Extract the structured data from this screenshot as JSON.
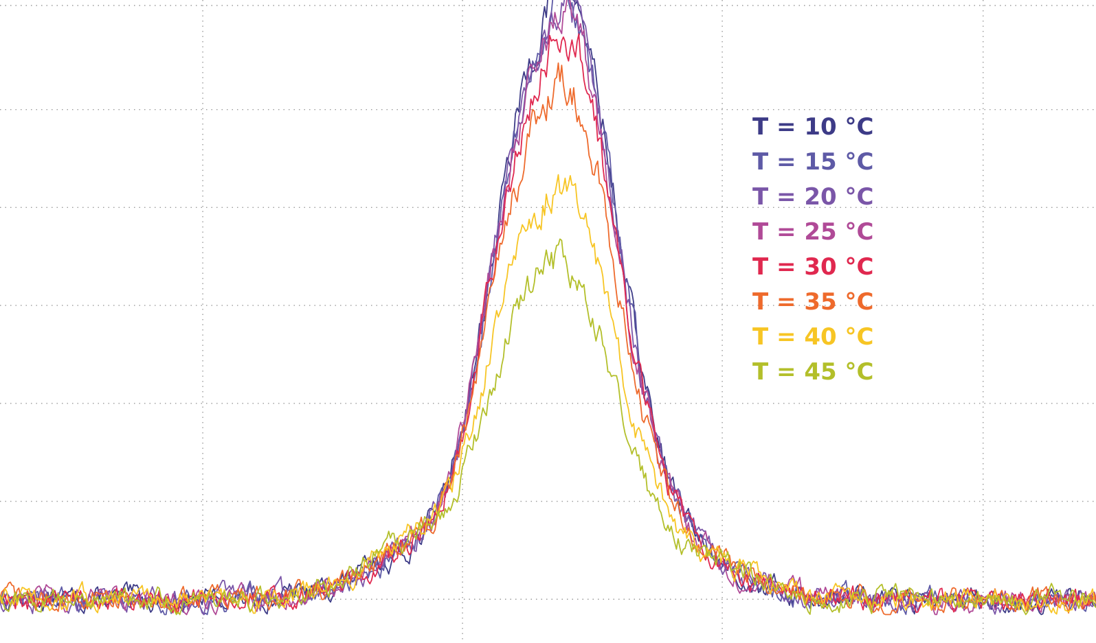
{
  "chart_data": {
    "type": "line",
    "title": "",
    "xlabel": "",
    "ylabel": "",
    "grid": true,
    "legend_placement": "right",
    "xlim": [
      0,
      100
    ],
    "ylim": [
      0,
      100
    ],
    "x_gridlines": [
      18.5,
      42.2,
      65.9,
      89.7
    ],
    "y_gridlines": [
      3.0,
      19.0,
      35.0,
      51.0,
      67.0,
      83.0,
      100.0
    ],
    "series": [
      {
        "name": "T = 10 °C",
        "color": "#3d3b87",
        "peak": 95.0,
        "shoulder": 62.0
      },
      {
        "name": "T = 15 °C",
        "color": "#5e5aa6",
        "peak": 93.5,
        "shoulder": 60.0
      },
      {
        "name": "T = 20 °C",
        "color": "#7a56a8",
        "peak": 92.0,
        "shoulder": 63.0
      },
      {
        "name": "T = 25 °C",
        "color": "#b04a97",
        "peak": 90.0,
        "shoulder": 62.0
      },
      {
        "name": "T = 30 °C",
        "color": "#e0284f",
        "peak": 88.0,
        "shoulder": 60.0
      },
      {
        "name": "T = 35 °C",
        "color": "#ee6a2c",
        "peak": 80.0,
        "shoulder": 56.0
      },
      {
        "name": "T = 40 °C",
        "color": "#f7c524",
        "peak": 64.0,
        "shoulder": 48.0
      },
      {
        "name": "T = 45 °C",
        "color": "#b3bf2a",
        "peak": 52.0,
        "shoulder": 42.0
      }
    ]
  }
}
